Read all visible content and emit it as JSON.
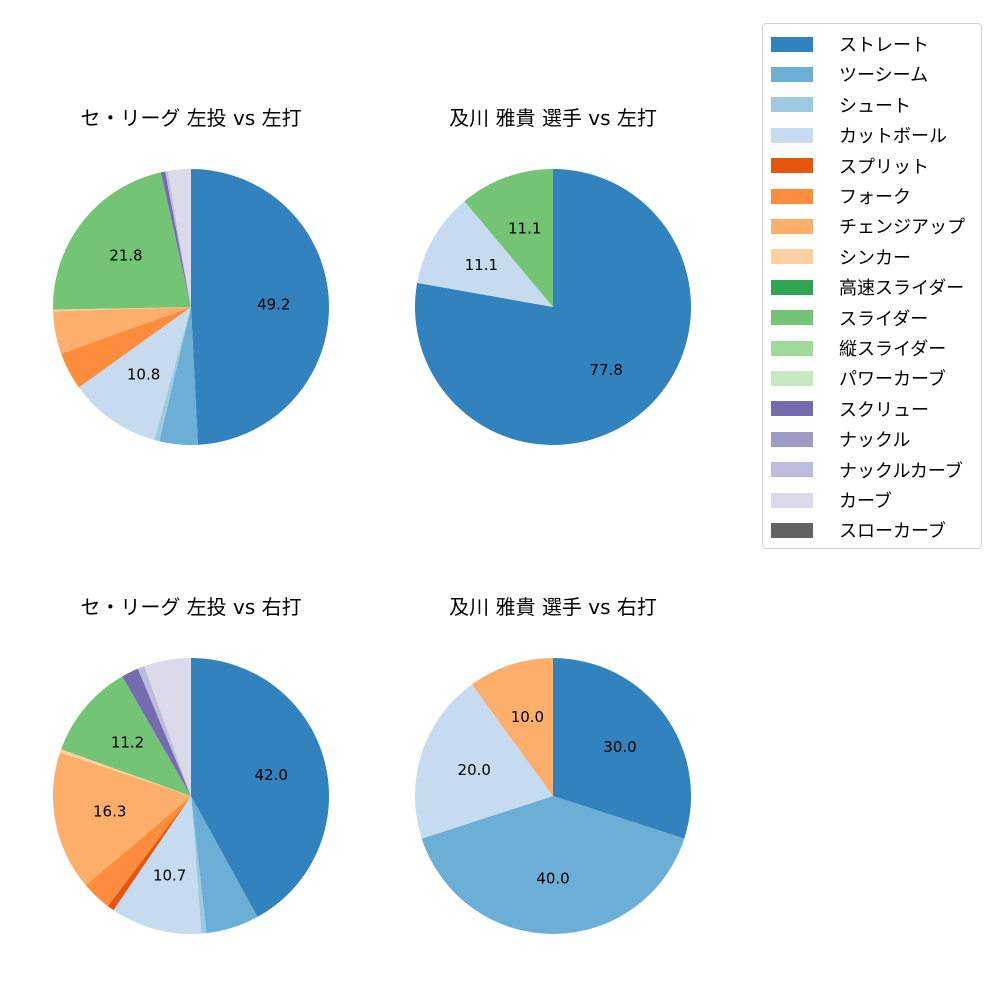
{
  "legend": {
    "items": [
      {
        "label": "ストレート",
        "color": "#3182bd"
      },
      {
        "label": "ツーシーム",
        "color": "#6baed6"
      },
      {
        "label": "シュート",
        "color": "#9ecae1"
      },
      {
        "label": "カットボール",
        "color": "#c6dbef"
      },
      {
        "label": "スプリット",
        "color": "#e6550d"
      },
      {
        "label": "フォーク",
        "color": "#fd8d3c"
      },
      {
        "label": "チェンジアップ",
        "color": "#fdae6b"
      },
      {
        "label": "シンカー",
        "color": "#fdd0a2"
      },
      {
        "label": "高速スライダー",
        "color": "#31a354"
      },
      {
        "label": "スライダー",
        "color": "#74c476"
      },
      {
        "label": "縦スライダー",
        "color": "#a1d99b"
      },
      {
        "label": "パワーカーブ",
        "color": "#c7e9c0"
      },
      {
        "label": "スクリュー",
        "color": "#756bb1"
      },
      {
        "label": "ナックル",
        "color": "#9e9ac8"
      },
      {
        "label": "ナックルカーブ",
        "color": "#bcbddc"
      },
      {
        "label": "カーブ",
        "color": "#dadaeb"
      },
      {
        "label": "スローカーブ",
        "color": "#636363"
      }
    ]
  },
  "chart_data": [
    {
      "type": "pie",
      "title": "セ・リーグ 左投 vs 左打",
      "start_angle": 90,
      "direction": "clockwise",
      "categories": [
        "ストレート",
        "ツーシーム",
        "シュート",
        "カットボール",
        "フォーク",
        "チェンジアップ",
        "シンカー",
        "スライダー",
        "スクリュー",
        "ナックルカーブ",
        "カーブ"
      ],
      "values": [
        49.2,
        4.5,
        0.6,
        10.8,
        4.4,
        5.0,
        0.2,
        21.8,
        0.5,
        0.3,
        2.7
      ],
      "labels_shown": [
        "49.2",
        "10.8",
        "21.8"
      ]
    },
    {
      "type": "pie",
      "title": "及川 雅貴 選手 vs 左打",
      "start_angle": 90,
      "direction": "clockwise",
      "categories": [
        "ストレート",
        "カットボール",
        "スライダー"
      ],
      "values": [
        77.8,
        11.1,
        11.1
      ],
      "labels_shown": [
        "77.8",
        "11.1",
        "11.1"
      ]
    },
    {
      "type": "pie",
      "title": "セ・リーグ 左投 vs 右打",
      "start_angle": 90,
      "direction": "clockwise",
      "categories": [
        "ストレート",
        "ツーシーム",
        "シュート",
        "カットボール",
        "スプリット",
        "フォーク",
        "チェンジアップ",
        "シンカー",
        "スライダー",
        "スクリュー",
        "ナックルカーブ",
        "カーブ"
      ],
      "values": [
        42.0,
        6.2,
        0.6,
        10.7,
        0.8,
        3.5,
        16.3,
        0.4,
        11.2,
        2.0,
        0.8,
        5.5
      ],
      "labels_shown": [
        "42.0",
        "10.7",
        "16.3",
        "11.2"
      ]
    },
    {
      "type": "pie",
      "title": "及川 雅貴 選手 vs 右打",
      "start_angle": 90,
      "direction": "clockwise",
      "categories": [
        "ストレート",
        "ツーシーム",
        "カットボール",
        "チェンジアップ"
      ],
      "values": [
        30.0,
        40.0,
        20.0,
        10.0
      ],
      "labels_shown": [
        "30.0",
        "40.0",
        "20.0",
        "10.0"
      ]
    }
  ],
  "label_threshold": 10
}
